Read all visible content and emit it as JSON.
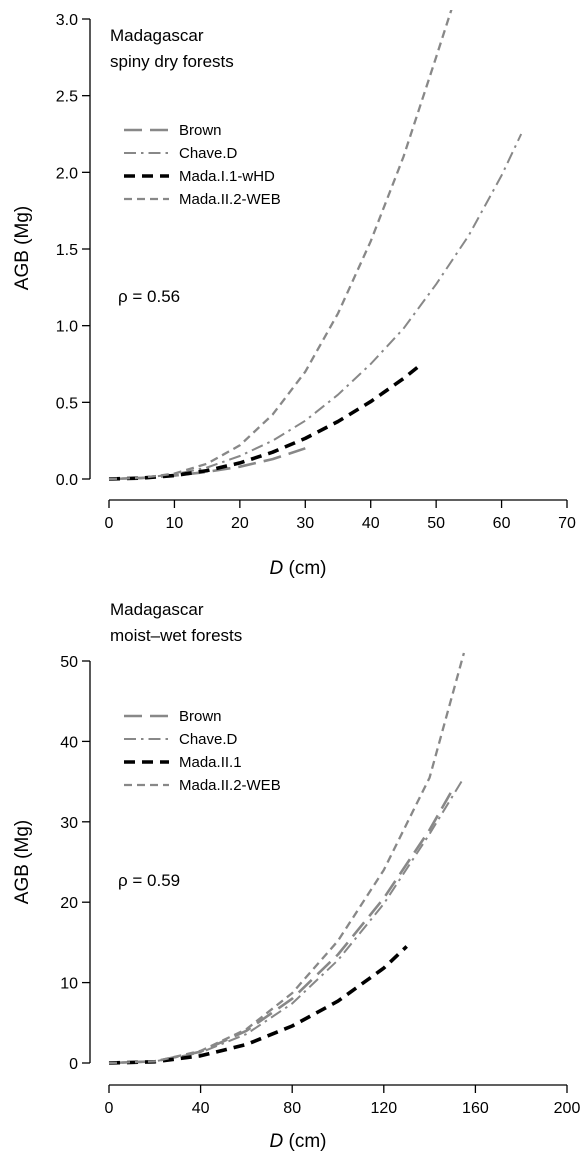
{
  "chart_data": [
    {
      "type": "line",
      "annotation": [
        "Madagascar",
        "spiny dry forests"
      ],
      "rho_label": "ρ = 0.56",
      "xlabel_var": "D",
      "xlabel_unit": " (cm)",
      "ylabel": "AGB (Mg)",
      "xlim": [
        0,
        70
      ],
      "ylim": [
        0,
        3.0
      ],
      "xticks": [
        0,
        10,
        20,
        30,
        40,
        50,
        60,
        70
      ],
      "xtick_labels": [
        "0",
        "10",
        "20",
        "30",
        "40",
        "50",
        "60",
        "70"
      ],
      "yticks": [
        0.0,
        0.5,
        1.0,
        1.5,
        2.0,
        2.5,
        3.0
      ],
      "ytick_labels": [
        "0.0",
        "0.5",
        "1.0",
        "1.5",
        "2.0",
        "2.5",
        "3.0"
      ],
      "legend_position": "upper-left",
      "series": [
        {
          "name": "Brown",
          "style": "longdash",
          "color": "#888888",
          "weight": "normal",
          "x": [
            0,
            5,
            10,
            15,
            20,
            25,
            30
          ],
          "y": [
            0.0,
            0.006,
            0.022,
            0.046,
            0.08,
            0.13,
            0.2
          ]
        },
        {
          "name": "Chave.D",
          "style": "dashdot",
          "color": "#888888",
          "weight": "normal",
          "x": [
            0,
            5,
            10,
            15,
            20,
            25,
            30,
            35,
            40,
            45,
            50,
            55,
            60,
            63
          ],
          "y": [
            0.0,
            0.008,
            0.03,
            0.075,
            0.15,
            0.25,
            0.38,
            0.55,
            0.75,
            0.98,
            1.27,
            1.59,
            1.98,
            2.25
          ]
        },
        {
          "name": "Mada.I.1-wHD",
          "style": "dash",
          "color": "#000000",
          "weight": "bold",
          "x": [
            0,
            5,
            10,
            15,
            20,
            25,
            30,
            35,
            40,
            45,
            47.5
          ],
          "y": [
            0.0,
            0.006,
            0.023,
            0.055,
            0.105,
            0.175,
            0.265,
            0.375,
            0.505,
            0.655,
            0.74
          ]
        },
        {
          "name": "Mada.II.2-WEB",
          "style": "shortdash",
          "color": "#888888",
          "weight": "normal",
          "x": [
            0,
            5,
            10,
            15,
            20,
            25,
            30,
            35,
            40,
            45,
            50,
            53
          ],
          "y": [
            0.0,
            0.008,
            0.035,
            0.1,
            0.22,
            0.42,
            0.7,
            1.08,
            1.55,
            2.1,
            2.75,
            3.15
          ]
        }
      ]
    },
    {
      "type": "line",
      "annotation": [
        "Madagascar",
        "moist–wet forests"
      ],
      "rho_label": "ρ = 0.59",
      "xlabel_var": "D",
      "xlabel_unit": " (cm)",
      "ylabel": "AGB (Mg)",
      "xlim": [
        0,
        200
      ],
      "ylim": [
        0,
        50
      ],
      "xticks": [
        0,
        40,
        80,
        120,
        160,
        200
      ],
      "xtick_labels": [
        "0",
        "40",
        "80",
        "120",
        "160",
        "200"
      ],
      "yticks": [
        0,
        10,
        20,
        30,
        40,
        50
      ],
      "ytick_labels": [
        "0",
        "10",
        "20",
        "30",
        "40",
        "50"
      ],
      "legend_position": "upper-left",
      "series": [
        {
          "name": "Brown",
          "style": "longdash",
          "color": "#888888",
          "weight": "normal",
          "x": [
            0,
            20,
            40,
            60,
            80,
            100,
            120,
            140,
            150
          ],
          "y": [
            0.0,
            0.2,
            1.4,
            4.0,
            8.0,
            13.5,
            20.5,
            29.0,
            34.0
          ]
        },
        {
          "name": "Chave.D",
          "style": "dashdot",
          "color": "#888888",
          "weight": "normal",
          "x": [
            0,
            20,
            40,
            60,
            80,
            100,
            120,
            140,
            155
          ],
          "y": [
            0.0,
            0.2,
            1.3,
            3.6,
            7.4,
            12.8,
            19.8,
            28.5,
            35.5
          ]
        },
        {
          "name": "Mada.II.1",
          "style": "dash",
          "color": "#000000",
          "weight": "bold",
          "x": [
            0,
            20,
            40,
            60,
            80,
            100,
            120,
            130
          ],
          "y": [
            0.0,
            0.15,
            0.9,
            2.3,
            4.6,
            7.7,
            11.8,
            14.5
          ]
        },
        {
          "name": "Mada.II.2-WEB",
          "style": "shortdash",
          "color": "#888888",
          "weight": "normal",
          "x": [
            0,
            20,
            40,
            60,
            80,
            100,
            120,
            140,
            155
          ],
          "y": [
            0.0,
            0.2,
            1.5,
            4.2,
            8.7,
            15.2,
            24.0,
            35.5,
            51.0
          ]
        }
      ]
    }
  ]
}
